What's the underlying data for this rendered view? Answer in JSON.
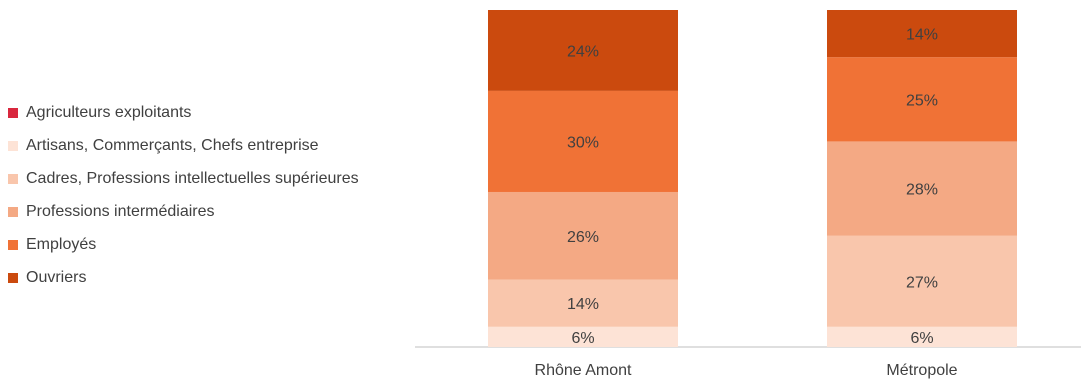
{
  "chart_data": {
    "type": "bar",
    "stacked": "percent",
    "categories": [
      "Rhône Amont",
      "Métropole"
    ],
    "series": [
      {
        "name": "Agriculteurs exploitants",
        "values": [
          0,
          0
        ],
        "color": "#d9273e",
        "labels": [
          "",
          ""
        ]
      },
      {
        "name": "Artisans, Commerçants, Chefs entreprise",
        "values": [
          6,
          6
        ],
        "color": "#fde3d6",
        "labels": [
          "6%",
          "6%"
        ]
      },
      {
        "name": "Cadres, Professions intellectuelles supérieures",
        "values": [
          14,
          27
        ],
        "color": "#f9c6ac",
        "labels": [
          "14%",
          "27%"
        ]
      },
      {
        "name": "Professions intermédiaires",
        "values": [
          26,
          28
        ],
        "color": "#f4a984",
        "labels": [
          "26%",
          "28%"
        ]
      },
      {
        "name": "Employés",
        "values": [
          30,
          25
        ],
        "color": "#f07236",
        "labels": [
          "30%",
          "25%"
        ]
      },
      {
        "name": "Ouvriers",
        "values": [
          24,
          14
        ],
        "color": "#cb4a0e",
        "labels": [
          "24%",
          "14%"
        ]
      }
    ],
    "legend_position": "left",
    "grid": false
  }
}
